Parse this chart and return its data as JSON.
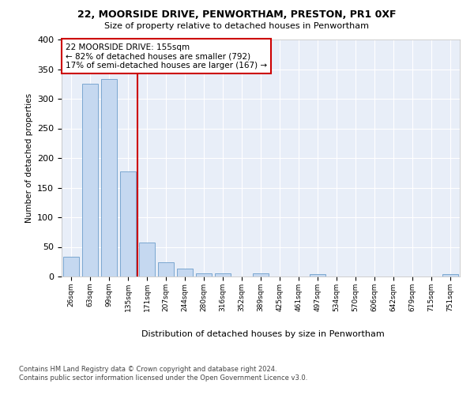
{
  "title1": "22, MOORSIDE DRIVE, PENWORTHAM, PRESTON, PR1 0XF",
  "title2": "Size of property relative to detached houses in Penwortham",
  "xlabel": "Distribution of detached houses by size in Penwortham",
  "ylabel": "Number of detached properties",
  "categories": [
    "26sqm",
    "63sqm",
    "99sqm",
    "135sqm",
    "171sqm",
    "207sqm",
    "244sqm",
    "280sqm",
    "316sqm",
    "352sqm",
    "389sqm",
    "425sqm",
    "461sqm",
    "497sqm",
    "534sqm",
    "570sqm",
    "606sqm",
    "642sqm",
    "679sqm",
    "715sqm",
    "751sqm"
  ],
  "values": [
    33,
    325,
    334,
    178,
    57,
    24,
    14,
    6,
    5,
    0,
    5,
    0,
    0,
    4,
    0,
    0,
    0,
    0,
    0,
    0,
    4
  ],
  "bar_color": "#c5d8f0",
  "bar_edge_color": "#7ba7d0",
  "vline_color": "#cc0000",
  "annotation_text": "22 MOORSIDE DRIVE: 155sqm\n← 82% of detached houses are smaller (792)\n17% of semi-detached houses are larger (167) →",
  "annotation_box_color": "#ffffff",
  "annotation_box_edge": "#cc0000",
  "footer1": "Contains HM Land Registry data © Crown copyright and database right 2024.",
  "footer2": "Contains public sector information licensed under the Open Government Licence v3.0.",
  "ylim": [
    0,
    400
  ],
  "plot_bg": "#e8eef8"
}
